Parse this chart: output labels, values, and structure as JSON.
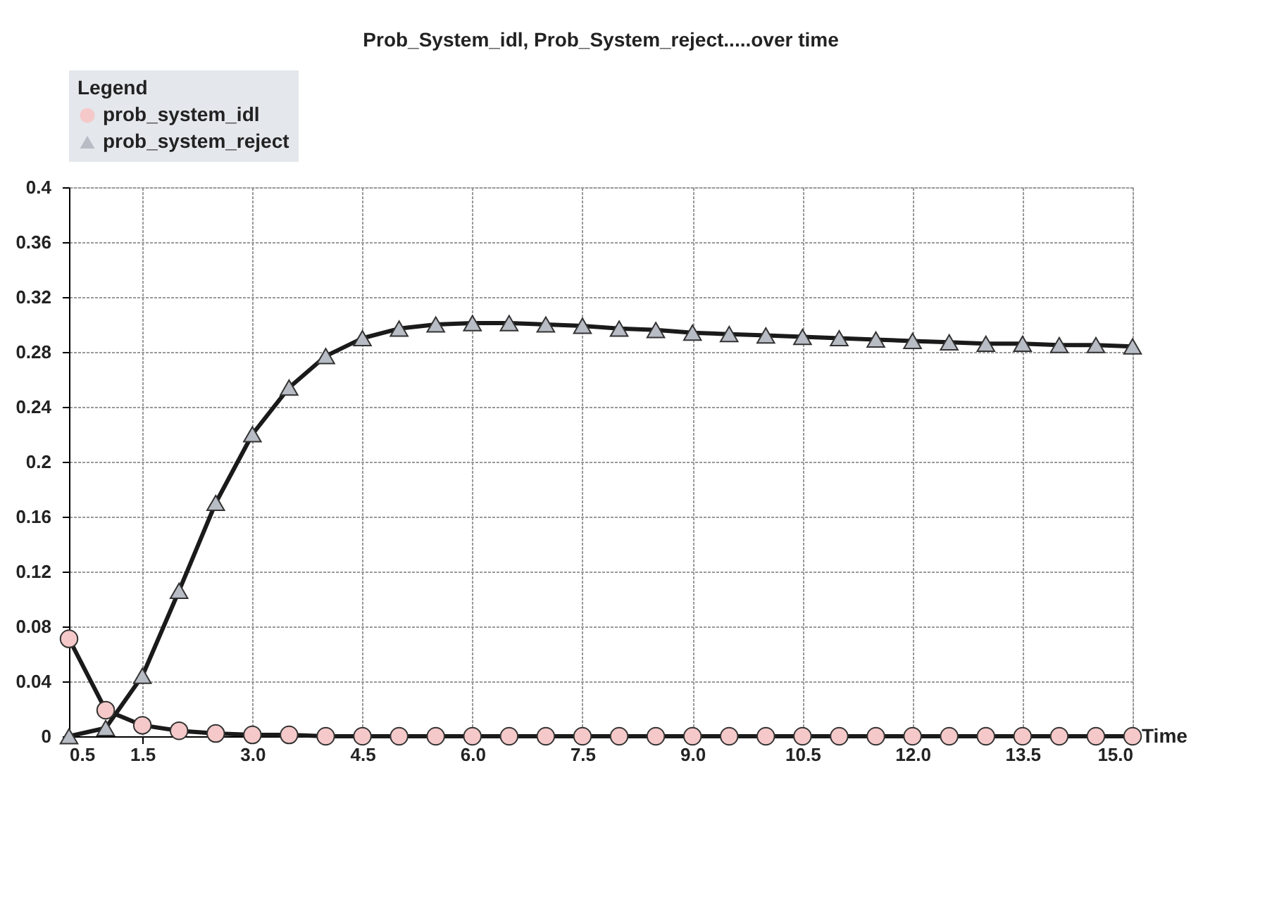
{
  "chart_data": {
    "type": "line",
    "title": "Prob_System_idl, Prob_System_reject.....over time",
    "xlabel": "Time",
    "legend_title": "Legend",
    "legend": "top left",
    "x": [
      0.5,
      1.0,
      1.5,
      2.0,
      2.5,
      3.0,
      3.5,
      4.0,
      4.5,
      5.0,
      5.5,
      6.0,
      6.5,
      7.0,
      7.5,
      8.0,
      8.5,
      9.0,
      9.5,
      10.0,
      10.5,
      11.0,
      11.5,
      12.0,
      12.5,
      13.0,
      13.5,
      14.0,
      14.5,
      15.0
    ],
    "series": [
      {
        "name": "prob_system_idl",
        "color": "#f5c9c9",
        "marker": "circle",
        "values": [
          0.071,
          0.019,
          0.008,
          0.004,
          0.002,
          0.001,
          0.001,
          0,
          0,
          0,
          0,
          0,
          0,
          0,
          0,
          0,
          0,
          0,
          0,
          0,
          0,
          0,
          0,
          0,
          0,
          0,
          0,
          0,
          0,
          0
        ]
      },
      {
        "name": "prob_system_reject",
        "color": "#b8bcc4",
        "marker": "triangle",
        "values": [
          0,
          0.006,
          0.044,
          0.106,
          0.17,
          0.22,
          0.254,
          0.277,
          0.29,
          0.297,
          0.3,
          0.301,
          0.301,
          0.3,
          0.299,
          0.297,
          0.296,
          0.294,
          0.293,
          0.292,
          0.291,
          0.29,
          0.289,
          0.288,
          0.287,
          0.286,
          0.286,
          0.285,
          0.285,
          0.284
        ]
      }
    ],
    "xlim": [
      0.5,
      15.0
    ],
    "xticks": [
      {
        "value": 0.5,
        "label": "0.5"
      },
      {
        "value": 1.5,
        "label": "1.5"
      },
      {
        "value": 3.0,
        "label": "3.0"
      },
      {
        "value": 4.5,
        "label": "4.5"
      },
      {
        "value": 6.0,
        "label": "6.0"
      },
      {
        "value": 7.5,
        "label": "7.5"
      },
      {
        "value": 9.0,
        "label": "9.0"
      },
      {
        "value": 10.5,
        "label": "10.5"
      },
      {
        "value": 12.0,
        "label": "12.0"
      },
      {
        "value": 13.5,
        "label": "13.5"
      },
      {
        "value": 15.0,
        "label": "15.0"
      }
    ],
    "ylim": [
      0,
      0.4
    ],
    "yticks": [
      0,
      0.04,
      0.08,
      0.12,
      0.16,
      0.2,
      0.24,
      0.28,
      0.32,
      0.36,
      0.4
    ],
    "grid": true,
    "line_style": "solid"
  }
}
